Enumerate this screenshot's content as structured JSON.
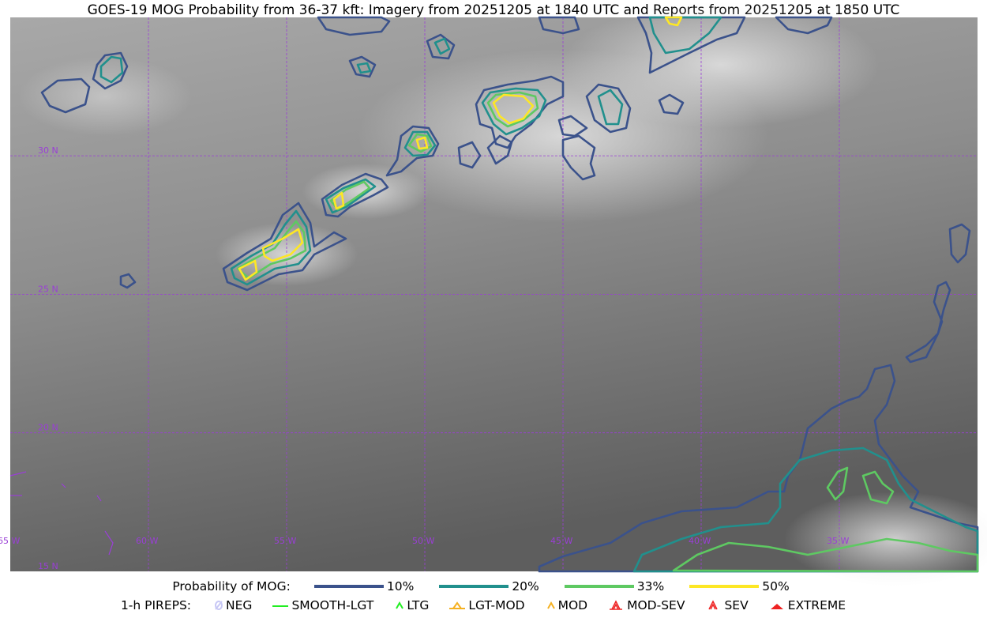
{
  "title": "GOES-19 MOG Probability from 36-37 kft: Imagery from 20251205 at 1840 UTC and Reports from 20251205 at 1850 UTC",
  "map": {
    "lat_labels": [
      "30 N",
      "25 N",
      "20 N",
      "15 N"
    ],
    "lon_labels": [
      "65 W",
      "60 W",
      "55 W",
      "50 W",
      "45 W",
      "40 W",
      "35 W"
    ],
    "grid_color": "#9a3fd6"
  },
  "legend": {
    "prob_label": "Probability of MOG:",
    "prob_levels": [
      {
        "label": "10%",
        "color": "#3b528b"
      },
      {
        "label": "20%",
        "color": "#21908d"
      },
      {
        "label": "33%",
        "color": "#5ec962"
      },
      {
        "label": "50%",
        "color": "#fde725"
      }
    ],
    "pirep_label": "1-h PIREPS:",
    "pireps": [
      {
        "label": "NEG",
        "color": "#c8c8f5",
        "icon": "neg-slash-circle-icon"
      },
      {
        "label": "SMOOTH-LGT",
        "color": "#22ee22",
        "icon": "line-icon"
      },
      {
        "label": "LTG",
        "color": "#22ee22",
        "icon": "caret-icon"
      },
      {
        "label": "LGT-MOD",
        "color": "#f5b122",
        "icon": "caret-bar-icon"
      },
      {
        "label": "MOD",
        "color": "#f5b122",
        "icon": "caret-icon"
      },
      {
        "label": "MOD-SEV",
        "color": "#ee2222",
        "icon": "double-caret-bar-icon"
      },
      {
        "label": "SEV",
        "color": "#ee2222",
        "icon": "double-caret-icon"
      },
      {
        "label": "EXTREME",
        "color": "#ee2222",
        "icon": "filled-triangle-icon"
      }
    ]
  }
}
